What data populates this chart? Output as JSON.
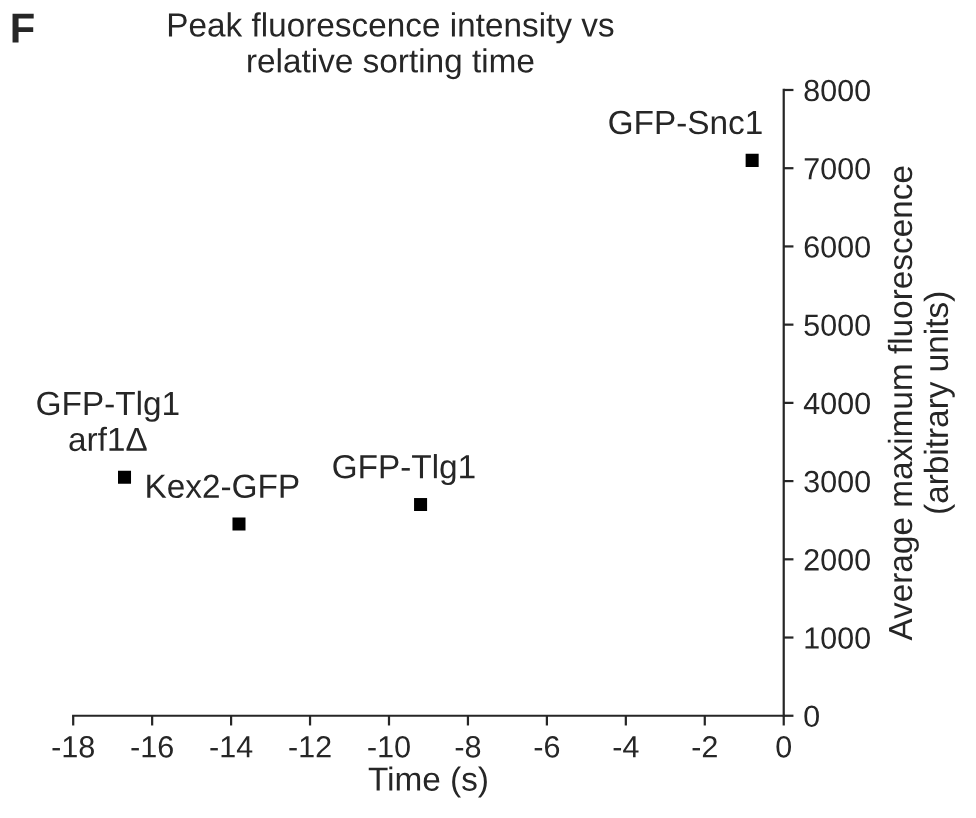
{
  "chart_data": {
    "type": "scatter",
    "title": "Peak fluorescence intensity vs\nrelative sorting time",
    "xlabel": "Time (s)",
    "ylabel": "Average maximum fluorescence\n(arbitrary units)",
    "x": [
      -16.7,
      -13.8,
      -9.2,
      -0.8
    ],
    "series": [
      {
        "color": "#000000",
        "values": [
          3050,
          2450,
          2700,
          7100
        ]
      }
    ],
    "marker": "square",
    "xlim": [
      -18,
      0
    ],
    "xticks": [
      -18,
      -16,
      -14,
      -12,
      -10,
      -8,
      -6,
      -4,
      -2,
      0
    ],
    "ylim": [
      0,
      8000
    ],
    "yticks": [
      0,
      1000,
      2000,
      3000,
      4000,
      5000,
      6000,
      7000,
      8000
    ],
    "grid": false,
    "legend": false,
    "annotations": [
      "F",
      {
        "text": "GFP-Tlg1\narf1Δ",
        "x": -16.7,
        "y": 3050
      },
      {
        "text": "Kex2-GFP",
        "x": -13.8,
        "y": 2450
      },
      {
        "text": "GFP-Tlg1",
        "x": -9.2,
        "y": 2700
      },
      {
        "text": "GFP-Snc1",
        "x": -0.8,
        "y": 7100
      }
    ]
  }
}
